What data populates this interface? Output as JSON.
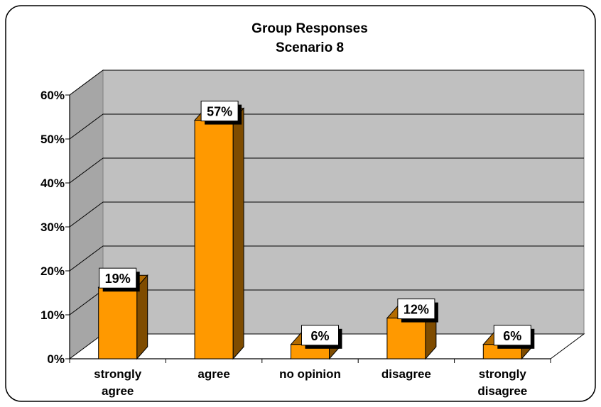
{
  "chart_data": {
    "type": "bar",
    "title": "Group Responses",
    "subtitle": "Scenario 8",
    "categories": [
      "strongly agree",
      "agree",
      "no opinion",
      "disagree",
      "strongly disagree"
    ],
    "category_lines": [
      [
        "strongly",
        "agree"
      ],
      [
        "agree"
      ],
      [
        "no opinion"
      ],
      [
        "disagree"
      ],
      [
        "strongly",
        "disagree"
      ]
    ],
    "values": [
      19,
      57,
      6,
      12,
      6
    ],
    "data_labels": [
      "19%",
      "57%",
      "6%",
      "12%",
      "6%"
    ],
    "yticks": [
      "0%",
      "10%",
      "20%",
      "30%",
      "40%",
      "50%",
      "60%"
    ],
    "ylim": [
      0,
      60
    ],
    "grid": true,
    "legend": "none",
    "colors": {
      "bar_front": "#FF9900",
      "bar_side": "#7F4C00",
      "bar_top": "#B36B00",
      "wall": "#C0C0C0",
      "wall_side": "#A6A6A6",
      "floor": "#FFFFFF"
    }
  }
}
